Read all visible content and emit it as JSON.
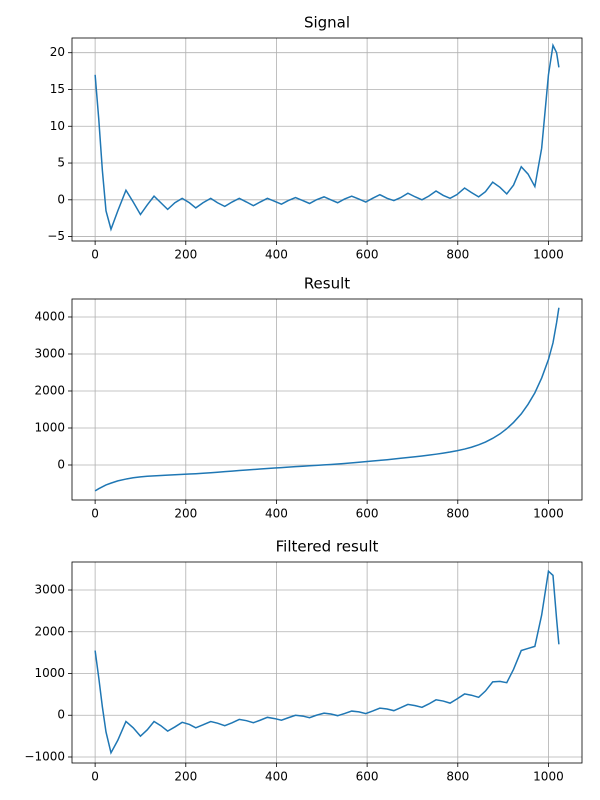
{
  "chart_data": [
    {
      "type": "line",
      "title": "Signal",
      "color": "#1f77b4",
      "grid": true,
      "x": [
        0,
        8,
        16,
        24,
        35,
        50,
        68,
        84,
        100,
        115,
        130,
        145,
        160,
        176,
        192,
        208,
        222,
        238,
        255,
        270,
        286,
        302,
        318,
        334,
        349,
        364,
        380,
        396,
        411,
        426,
        442,
        458,
        473,
        488,
        505,
        520,
        535,
        550,
        566,
        582,
        597,
        612,
        628,
        644,
        659,
        674,
        690,
        706,
        721,
        736,
        752,
        768,
        783,
        798,
        815,
        830,
        846,
        861,
        877,
        893,
        908,
        923,
        940,
        955,
        970,
        985,
        1000,
        1010,
        1018,
        1023
      ],
      "values": [
        17,
        11,
        4,
        -1.5,
        -4,
        -1.5,
        1.3,
        -0.3,
        -2,
        -0.7,
        0.5,
        -0.4,
        -1.3,
        -0.4,
        0.2,
        -0.4,
        -1.1,
        -0.4,
        0.2,
        -0.4,
        -0.9,
        -0.3,
        0.2,
        -0.3,
        -0.8,
        -0.3,
        0.2,
        -0.2,
        -0.6,
        -0.1,
        0.3,
        -0.1,
        -0.5,
        0,
        0.4,
        0,
        -0.4,
        0.1,
        0.5,
        0.1,
        -0.3,
        0.2,
        0.7,
        0.2,
        -0.1,
        0.3,
        0.9,
        0.4,
        0,
        0.5,
        1.2,
        0.6,
        0.2,
        0.7,
        1.6,
        1,
        0.4,
        1.1,
        2.4,
        1.7,
        0.8,
        2,
        4.5,
        3.5,
        1.8,
        7,
        17,
        21,
        20,
        18
      ],
      "xlim": [
        -51,
        1074
      ],
      "xticks": [
        0,
        200,
        400,
        600,
        800,
        1000
      ],
      "ylim": [
        -5.6,
        22.0
      ],
      "yticks": [
        {
          "value": -5,
          "label": "−5"
        },
        0,
        5,
        10,
        15,
        20
      ]
    },
    {
      "type": "line",
      "title": "Result",
      "color": "#1f77b4",
      "grid": true,
      "x": [
        0,
        8,
        16,
        24,
        35,
        50,
        68,
        84,
        100,
        115,
        130,
        145,
        160,
        176,
        192,
        208,
        222,
        238,
        255,
        270,
        286,
        302,
        318,
        334,
        349,
        364,
        380,
        396,
        411,
        426,
        442,
        458,
        473,
        488,
        505,
        520,
        535,
        550,
        566,
        582,
        597,
        612,
        628,
        644,
        659,
        674,
        690,
        706,
        721,
        736,
        752,
        768,
        783,
        798,
        815,
        830,
        846,
        861,
        877,
        893,
        908,
        923,
        940,
        955,
        970,
        985,
        1000,
        1010,
        1018,
        1023
      ],
      "values": [
        -700,
        -640,
        -590,
        -540,
        -490,
        -430,
        -380,
        -345,
        -320,
        -305,
        -295,
        -285,
        -275,
        -265,
        -255,
        -245,
        -235,
        -222,
        -208,
        -195,
        -180,
        -165,
        -150,
        -135,
        -122,
        -108,
        -95,
        -82,
        -70,
        -58,
        -45,
        -33,
        -22,
        -10,
        3,
        15,
        28,
        42,
        57,
        73,
        90,
        107,
        125,
        143,
        162,
        181,
        202,
        223,
        244,
        266,
        292,
        320,
        350,
        385,
        430,
        480,
        545,
        620,
        720,
        840,
        980,
        1150,
        1380,
        1640,
        1950,
        2350,
        2850,
        3300,
        3850,
        4250
      ],
      "xlim": [
        -51,
        1074
      ],
      "xticks": [
        0,
        200,
        400,
        600,
        800,
        1000
      ],
      "ylim": [
        -946,
        4486
      ],
      "yticks": [
        0,
        1000,
        2000,
        3000,
        4000
      ]
    },
    {
      "type": "line",
      "title": "Filtered result",
      "color": "#1f77b4",
      "grid": true,
      "x": [
        0,
        8,
        16,
        24,
        35,
        50,
        68,
        84,
        100,
        115,
        130,
        145,
        160,
        176,
        192,
        208,
        222,
        238,
        255,
        270,
        286,
        302,
        318,
        334,
        349,
        364,
        380,
        396,
        411,
        426,
        442,
        458,
        473,
        488,
        505,
        520,
        535,
        550,
        566,
        582,
        597,
        612,
        628,
        644,
        659,
        674,
        690,
        706,
        721,
        736,
        752,
        768,
        783,
        798,
        815,
        830,
        846,
        861,
        877,
        893,
        908,
        923,
        940,
        955,
        970,
        985,
        1000,
        1010,
        1018,
        1023
      ],
      "values": [
        1550,
        900,
        200,
        -400,
        -900,
        -600,
        -150,
        -300,
        -500,
        -350,
        -150,
        -250,
        -380,
        -280,
        -170,
        -220,
        -300,
        -230,
        -150,
        -190,
        -250,
        -180,
        -100,
        -130,
        -180,
        -120,
        -50,
        -80,
        -120,
        -60,
        0,
        -20,
        -60,
        0,
        50,
        30,
        -10,
        40,
        100,
        80,
        40,
        100,
        170,
        150,
        110,
        180,
        260,
        230,
        190,
        270,
        370,
        340,
        290,
        390,
        510,
        480,
        430,
        580,
        800,
        810,
        780,
        1100,
        1550,
        1600,
        1650,
        2400,
        3450,
        3350,
        2300,
        1700
      ],
      "xlim": [
        -51,
        1074
      ],
      "xticks": [
        0,
        200,
        400,
        600,
        800,
        1000
      ],
      "ylim": [
        -1144,
        3671
      ],
      "yticks": [
        {
          "value": -1000,
          "label": "−1000"
        },
        0,
        1000,
        2000,
        3000
      ]
    }
  ]
}
